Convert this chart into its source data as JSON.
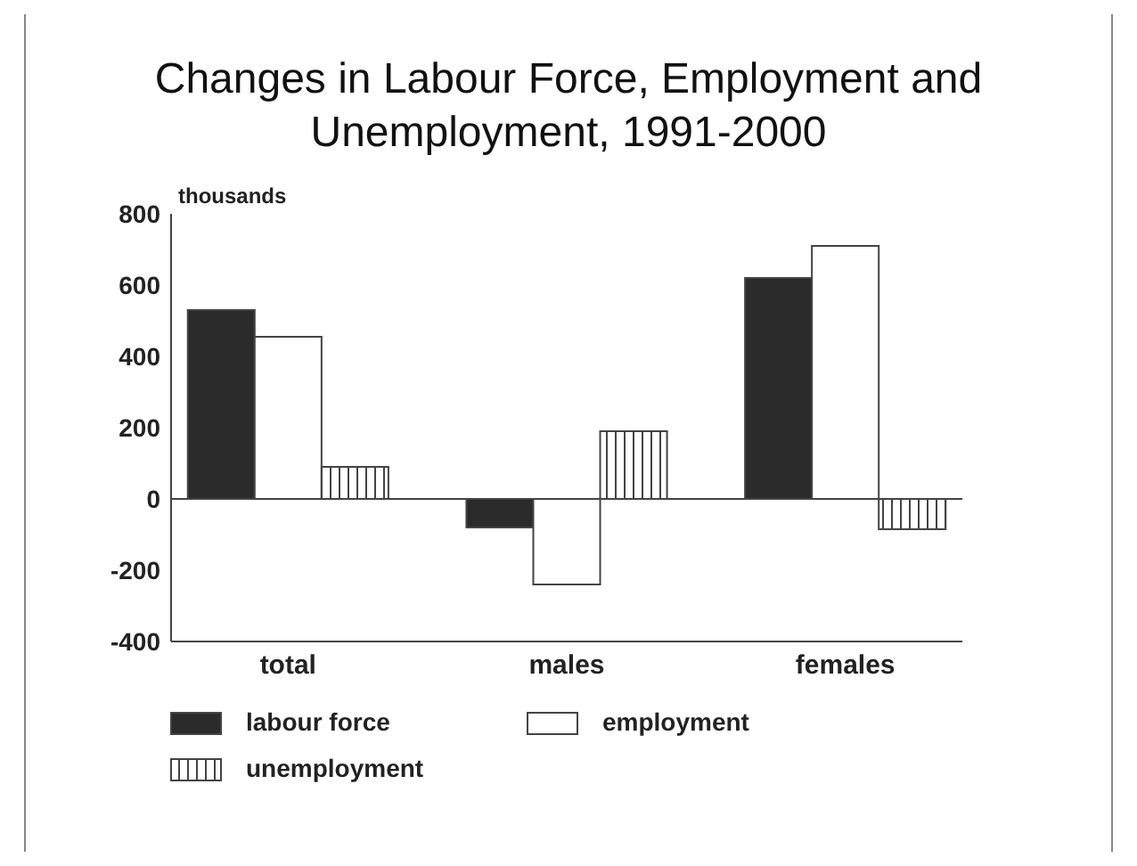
{
  "chart_data": {
    "type": "bar",
    "title": "Changes in Labour Force, Employment and Unemployment, 1991-2000",
    "ylabel": "thousands",
    "categories": [
      "total",
      "males",
      "females"
    ],
    "series": [
      {
        "name": "labour force",
        "color": "#2b2b2b",
        "values": [
          530,
          -80,
          620
        ]
      },
      {
        "name": "employment",
        "color": "#ffffff",
        "values": [
          455,
          -240,
          710
        ]
      },
      {
        "name": "unemployment",
        "color": "#444444",
        "values": [
          90,
          190,
          -85
        ]
      }
    ],
    "ylim": [
      -400,
      800
    ],
    "yticks": [
      -400,
      -200,
      0,
      200,
      400,
      600,
      800
    ],
    "legend": "bottom"
  }
}
